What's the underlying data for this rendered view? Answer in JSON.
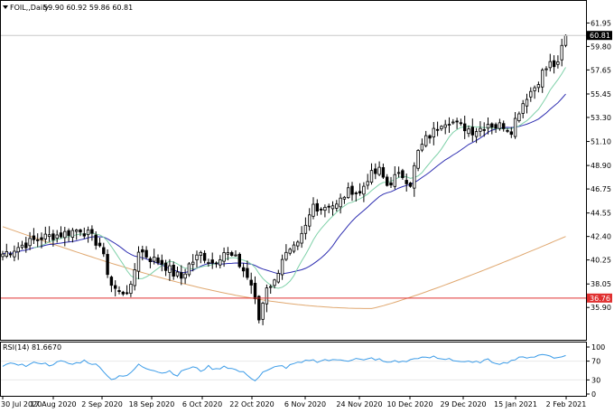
{
  "chart_data": {
    "type": "candlestick",
    "symbol": "FOIL,,Daily",
    "ohlc_label": "59.90 60.92 59.86 60.81",
    "last_price": 60.81,
    "last_price_label": "60.81",
    "hline_price": 36.76,
    "hline_label": "36.76",
    "price_range": [
      33.6,
      62.4
    ],
    "y_ticks": [
      "61.95",
      "59.80",
      "57.65",
      "55.45",
      "53.30",
      "51.10",
      "48.90",
      "46.75",
      "44.55",
      "42.40",
      "40.25",
      "38.05",
      "35.90"
    ],
    "x_ticks": [
      "30 Jul 2020",
      "17 Aug 2020",
      "2 Sep 2020",
      "18 Sep 2020",
      "6 Oct 2020",
      "22 Oct 2020",
      "6 Nov 2020",
      "24 Nov 2020",
      "10 Dec 2020",
      "29 Dec 2020",
      "15 Jan 2021",
      "2 Feb 2021"
    ],
    "close_anchors": [
      [
        0,
        40.8
      ],
      [
        5,
        41.6
      ],
      [
        10,
        42.3
      ],
      [
        15,
        42.6
      ],
      [
        20,
        43.1
      ],
      [
        22,
        42.6
      ],
      [
        25,
        41.6
      ],
      [
        28,
        38.0
      ],
      [
        30,
        37.2
      ],
      [
        33,
        37.6
      ],
      [
        35,
        41.2
      ],
      [
        38,
        40.4
      ],
      [
        41,
        40.0
      ],
      [
        44,
        39.0
      ],
      [
        46,
        38.6
      ],
      [
        48,
        39.8
      ],
      [
        51,
        40.8
      ],
      [
        54,
        40.0
      ],
      [
        57,
        41.0
      ],
      [
        60,
        40.3
      ],
      [
        62,
        39.3
      ],
      [
        64,
        38.0
      ],
      [
        66,
        34.8
      ],
      [
        68,
        37.9
      ],
      [
        70,
        38.2
      ],
      [
        72,
        40.5
      ],
      [
        74,
        40.9
      ],
      [
        76,
        41.5
      ],
      [
        78,
        43.2
      ],
      [
        80,
        45.3
      ],
      [
        82,
        45.0
      ],
      [
        84,
        45.4
      ],
      [
        86,
        45.2
      ],
      [
        88,
        46.2
      ],
      [
        90,
        46.7
      ],
      [
        92,
        46.3
      ],
      [
        94,
        47.8
      ],
      [
        95,
        48.0
      ],
      [
        97,
        48.4
      ],
      [
        99,
        47.1
      ],
      [
        101,
        47.8
      ],
      [
        103,
        48.0
      ],
      [
        105,
        47.3
      ],
      [
        107,
        50.1
      ],
      [
        109,
        51.3
      ],
      [
        111,
        52.0
      ],
      [
        113,
        52.9
      ],
      [
        115,
        53.1
      ],
      [
        117,
        52.6
      ],
      [
        119,
        52.4
      ],
      [
        121,
        52.1
      ],
      [
        123,
        52.3
      ],
      [
        125,
        52.8
      ],
      [
        127,
        52.5
      ],
      [
        129,
        52.6
      ],
      [
        131,
        52.2
      ],
      [
        133,
        54.0
      ],
      [
        135,
        55.3
      ],
      [
        137,
        56.1
      ],
      [
        139,
        57.4
      ],
      [
        141,
        58.2
      ],
      [
        143,
        58.0
      ],
      [
        144,
        59.7
      ],
      [
        145,
        60.81
      ]
    ],
    "rsi": {
      "label": "RSI(14) 81.6670",
      "value": 81.667,
      "y_ticks": [
        "100",
        "70",
        "30",
        "0"
      ],
      "anchors": [
        [
          0,
          58
        ],
        [
          3,
          66
        ],
        [
          6,
          60
        ],
        [
          9,
          68
        ],
        [
          12,
          62
        ],
        [
          15,
          69
        ],
        [
          18,
          63
        ],
        [
          21,
          71
        ],
        [
          24,
          62
        ],
        [
          26,
          50
        ],
        [
          28,
          30
        ],
        [
          30,
          40
        ],
        [
          32,
          37
        ],
        [
          35,
          62
        ],
        [
          37,
          55
        ],
        [
          39,
          52
        ],
        [
          41,
          45
        ],
        [
          43,
          49
        ],
        [
          45,
          40
        ],
        [
          47,
          53
        ],
        [
          49,
          57
        ],
        [
          51,
          50
        ],
        [
          53,
          58
        ],
        [
          55,
          52
        ],
        [
          57,
          60
        ],
        [
          59,
          54
        ],
        [
          61,
          48
        ],
        [
          63,
          42
        ],
        [
          65,
          28
        ],
        [
          67,
          45
        ],
        [
          69,
          52
        ],
        [
          71,
          62
        ],
        [
          73,
          56
        ],
        [
          75,
          64
        ],
        [
          77,
          66
        ],
        [
          79,
          73
        ],
        [
          81,
          70
        ],
        [
          83,
          73
        ],
        [
          85,
          71
        ],
        [
          87,
          74
        ],
        [
          89,
          72
        ],
        [
          91,
          75
        ],
        [
          93,
          71
        ],
        [
          95,
          76
        ],
        [
          97,
          73
        ],
        [
          99,
          66
        ],
        [
          101,
          71
        ],
        [
          103,
          68
        ],
        [
          105,
          72
        ],
        [
          107,
          78
        ],
        [
          109,
          76
        ],
        [
          111,
          79
        ],
        [
          113,
          74
        ],
        [
          115,
          76
        ],
        [
          117,
          70
        ],
        [
          119,
          69
        ],
        [
          121,
          66
        ],
        [
          123,
          69
        ],
        [
          125,
          72
        ],
        [
          127,
          67
        ],
        [
          129,
          65
        ],
        [
          131,
          72
        ],
        [
          133,
          76
        ],
        [
          135,
          79
        ],
        [
          137,
          80
        ],
        [
          139,
          84
        ],
        [
          141,
          82
        ],
        [
          143,
          76
        ],
        [
          145,
          82
        ]
      ]
    },
    "series": [
      {
        "kind": "candles",
        "color_up": "#ffffff",
        "color_down": "#000000"
      },
      {
        "kind": "ma",
        "period": 10,
        "color": "#7fd1a9"
      },
      {
        "kind": "ma",
        "period": 20,
        "color": "#2c2cb0"
      },
      {
        "kind": "ma",
        "period": 100,
        "color": "#e0a870"
      }
    ],
    "grid": false,
    "hline_color": "#e03030",
    "rsi_color": "#3c9ce8"
  }
}
